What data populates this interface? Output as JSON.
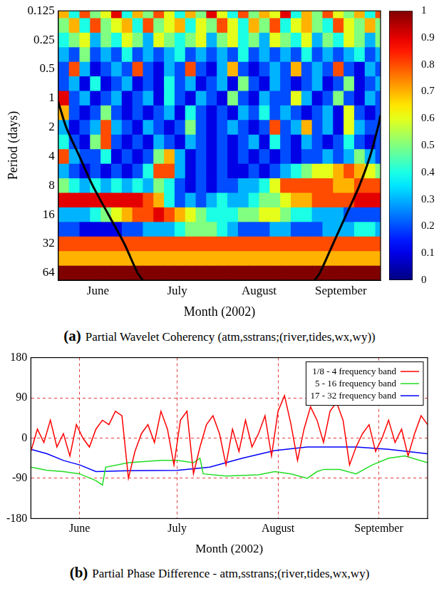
{
  "chart_data": [
    {
      "type": "heatmap",
      "panel_label": "(a)",
      "title": "Partial Wavelet Coherency (atm,sstrans;(river,tides,wx,wy))",
      "x_label": "Month (2002)",
      "y_label": "Period (days)",
      "xlim": [
        0,
        122
      ],
      "xticks": [
        {
          "value": 15,
          "label": "June"
        },
        {
          "value": 45,
          "label": "July"
        },
        {
          "value": 76,
          "label": "August"
        },
        {
          "value": 107,
          "label": "September"
        }
      ],
      "ylim": [
        0.125,
        76
      ],
      "yticks": [
        0.125,
        0.25,
        0.5,
        1,
        2,
        4,
        8,
        16,
        32,
        64
      ],
      "log": "y",
      "grid": false,
      "cells": {
        "x": [
          2,
          6,
          10,
          14,
          18,
          22,
          26,
          30,
          34,
          38,
          42,
          46,
          50,
          54,
          58,
          62,
          66,
          70,
          74,
          78,
          82,
          86,
          90,
          94,
          98,
          102,
          106,
          110,
          114,
          118,
          122
        ],
        "y": [
          0.125,
          0.177,
          0.25,
          0.354,
          0.5,
          0.707,
          1,
          1.41,
          2,
          2.83,
          4,
          5.66,
          8,
          11.3,
          16,
          22.6,
          32,
          45.3,
          64
        ],
        "z": [
          [
            0.7,
            0.4,
            0.8,
            0.5,
            0.6,
            0.9,
            0.4,
            0.7,
            0.5,
            0.8,
            0.6,
            0.4,
            0.7,
            0.5,
            0.9,
            0.6,
            0.4,
            0.8,
            0.5,
            0.7,
            0.6,
            0.9,
            0.4,
            0.7,
            0.5,
            0.8,
            0.6,
            0.5,
            0.7,
            0.4,
            0.8
          ],
          [
            0.5,
            0.7,
            0.4,
            0.8,
            0.5,
            0.6,
            0.7,
            0.4,
            0.8,
            0.5,
            0.6,
            0.7,
            0.4,
            0.6,
            0.5,
            0.8,
            0.6,
            0.4,
            0.7,
            0.5,
            0.8,
            0.4,
            0.6,
            0.7,
            0.5,
            0.4,
            0.8,
            0.6,
            0.5,
            0.7,
            0.5
          ],
          [
            0.4,
            0.5,
            0.6,
            0.3,
            0.5,
            0.4,
            0.6,
            0.5,
            0.3,
            0.6,
            0.5,
            0.4,
            0.5,
            0.6,
            0.3,
            0.5,
            0.6,
            0.4,
            0.5,
            0.3,
            0.6,
            0.5,
            0.4,
            0.6,
            0.3,
            0.5,
            0.4,
            0.6,
            0.5,
            0.3,
            0.5
          ],
          [
            0.3,
            0.2,
            0.5,
            0.2,
            0.3,
            0.2,
            0.4,
            0.2,
            0.3,
            0.2,
            0.3,
            0.4,
            0.2,
            0.3,
            0.2,
            0.3,
            0.2,
            0.4,
            0.2,
            0.3,
            0.2,
            0.3,
            0.2,
            0.4,
            0.2,
            0.3,
            0.2,
            0.3,
            0.4,
            0.2,
            0.3
          ],
          [
            0.2,
            0.8,
            0.3,
            0.1,
            0.2,
            0.3,
            0.2,
            0.8,
            0.2,
            0.1,
            0.3,
            0.2,
            0.8,
            0.2,
            0.1,
            0.3,
            0.7,
            0.2,
            0.1,
            0.2,
            0.3,
            0.2,
            0.7,
            0.2,
            0.3,
            0.2,
            0.8,
            0.2,
            0.1,
            0.3,
            0.2
          ],
          [
            0.2,
            0.3,
            0.1,
            0.4,
            0.1,
            0.2,
            0.3,
            0.1,
            0.2,
            0.1,
            0.4,
            0.2,
            0.3,
            0.1,
            0.2,
            0.3,
            0.1,
            0.5,
            0.2,
            0.1,
            0.3,
            0.2,
            0.1,
            0.2,
            0.3,
            0.1,
            0.2,
            0.5,
            0.1,
            0.2,
            0.3
          ],
          [
            0.9,
            0.2,
            0.3,
            0.1,
            0.2,
            0.3,
            0.1,
            0.2,
            0.3,
            0.1,
            0.4,
            0.2,
            0.1,
            0.3,
            0.2,
            0.1,
            0.5,
            0.2,
            0.1,
            0.3,
            0.2,
            0.2,
            0.6,
            0.3,
            0.1,
            0.2,
            0.5,
            0.2,
            0.1,
            0.3,
            0.2
          ],
          [
            0.7,
            0.2,
            0.1,
            0.2,
            0.5,
            0.2,
            0.1,
            0.2,
            0.1,
            0.2,
            0.3,
            0.1,
            0.4,
            0.2,
            0.1,
            0.2,
            0.1,
            0.3,
            0.2,
            0.4,
            0.2,
            0.3,
            0.2,
            0.1,
            0.2,
            0.3,
            0.1,
            0.6,
            0.2,
            0.1,
            0.2
          ],
          [
            0.3,
            0.1,
            0.2,
            0.3,
            0.8,
            0.3,
            0.2,
            0.1,
            0.3,
            0.2,
            0.1,
            0.2,
            0.5,
            0.2,
            0.1,
            0.2,
            0.3,
            0.2,
            0.1,
            0.2,
            0.8,
            0.2,
            0.3,
            0.7,
            0.2,
            0.3,
            0.1,
            0.6,
            0.3,
            0.2,
            0.2
          ],
          [
            0.4,
            0.2,
            0.1,
            0.5,
            0.8,
            0.2,
            0.1,
            0.2,
            0.1,
            0.3,
            0.2,
            0.1,
            0.3,
            0.2,
            0.1,
            0.2,
            0.1,
            0.2,
            0.3,
            0.1,
            0.4,
            0.2,
            0.1,
            0.3,
            0.2,
            0.1,
            0.2,
            0.4,
            0.2,
            0.1,
            0.2
          ],
          [
            0.8,
            0.3,
            0.2,
            0.2,
            0.4,
            0.1,
            0.2,
            0.1,
            0.2,
            0.5,
            0.7,
            0.3,
            0.1,
            0.2,
            0.1,
            0.2,
            0.1,
            0.2,
            0.1,
            0.2,
            0.1,
            0.2,
            0.1,
            0.2,
            0.2,
            0.3,
            0.2,
            0.3,
            0.5,
            0.3,
            0.2
          ],
          [
            0.3,
            0.2,
            0.1,
            0.2,
            0.1,
            0.2,
            0.1,
            0.2,
            0.4,
            0.8,
            0.8,
            0.3,
            0.1,
            0.2,
            0.1,
            0.2,
            0.1,
            0.1,
            0.2,
            0.1,
            0.2,
            0.3,
            0.4,
            0.5,
            0.6,
            0.6,
            0.7,
            0.8,
            0.7,
            0.6,
            0.5
          ],
          [
            0.5,
            0.4,
            0.3,
            0.4,
            0.3,
            0.4,
            0.3,
            0.4,
            0.3,
            0.5,
            0.4,
            0.2,
            0.1,
            0.2,
            0.1,
            0.2,
            0.2,
            0.3,
            0.3,
            0.4,
            0.6,
            0.8,
            0.8,
            0.8,
            0.8,
            0.8,
            0.7,
            0.7,
            0.8,
            0.8,
            0.8
          ],
          [
            0.9,
            0.9,
            0.9,
            0.9,
            0.9,
            0.9,
            0.9,
            0.9,
            0.8,
            0.7,
            0.4,
            0.2,
            0.3,
            0.2,
            0.3,
            0.4,
            0.3,
            0.3,
            0.4,
            0.5,
            0.5,
            0.6,
            0.7,
            0.7,
            0.8,
            0.8,
            0.8,
            0.8,
            0.9,
            0.9,
            0.9
          ],
          [
            0.3,
            0.3,
            0.3,
            0.4,
            0.5,
            0.6,
            0.7,
            0.8,
            0.8,
            0.9,
            0.8,
            0.7,
            0.6,
            0.5,
            0.4,
            0.4,
            0.4,
            0.5,
            0.5,
            0.6,
            0.6,
            0.5,
            0.4,
            0.4,
            0.3,
            0.3,
            0.3,
            0.2,
            0.2,
            0.2,
            0.2
          ],
          [
            0.2,
            0.2,
            0.1,
            0.1,
            0.1,
            0.1,
            0.2,
            0.2,
            0.3,
            0.3,
            0.3,
            0.4,
            0.5,
            0.5,
            0.5,
            0.4,
            0.3,
            0.2,
            0.2,
            0.2,
            0.3,
            0.3,
            0.2,
            0.2,
            0.2,
            0.3,
            0.3,
            0.3,
            0.4,
            0.4,
            0.3
          ],
          [
            0.8,
            0.8,
            0.8,
            0.8,
            0.8,
            0.8,
            0.8,
            0.8,
            0.8,
            0.8,
            0.8,
            0.8,
            0.8,
            0.8,
            0.8,
            0.8,
            0.8,
            0.8,
            0.8,
            0.8,
            0.8,
            0.8,
            0.8,
            0.8,
            0.8,
            0.8,
            0.8,
            0.8,
            0.8,
            0.8,
            0.8
          ],
          [
            0.7,
            0.7,
            0.7,
            0.7,
            0.7,
            0.7,
            0.7,
            0.7,
            0.7,
            0.7,
            0.7,
            0.7,
            0.7,
            0.7,
            0.7,
            0.7,
            0.7,
            0.7,
            0.7,
            0.7,
            0.7,
            0.7,
            0.7,
            0.7,
            0.7,
            0.7,
            0.7,
            0.7,
            0.7,
            0.7,
            0.7
          ],
          [
            1,
            1,
            1,
            1,
            1,
            1,
            1,
            1,
            1,
            1,
            1,
            1,
            1,
            1,
            1,
            1,
            1,
            1,
            1,
            1,
            1,
            1,
            1,
            1,
            1,
            1,
            1,
            1,
            1,
            1,
            1
          ]
        ]
      },
      "colorbar": {
        "range": [
          0,
          1
        ],
        "ticks": [
          0,
          0.1,
          0.2,
          0.3,
          0.4,
          0.5,
          0.6,
          0.7,
          0.8,
          0.9,
          1
        ]
      },
      "cone_of_influence": [
        {
          "x": [
            0,
            3,
            8,
            13,
            19,
            25,
            30,
            32
          ],
          "y": [
            1.1,
            2,
            4,
            8,
            16,
            32,
            64,
            76
          ]
        },
        {
          "x": [
            97,
            99,
            104,
            109,
            114,
            118,
            121,
            122
          ],
          "y": [
            76,
            64,
            32,
            16,
            8,
            4,
            2,
            1.5
          ]
        }
      ]
    },
    {
      "type": "line",
      "panel_label": "(b)",
      "title": "Partial Phase Difference - atm,sstrans;(river,tides,wx,wy)",
      "x_label": "Month (2002)",
      "xlim": [
        0,
        122
      ],
      "xticks": [
        {
          "value": 15,
          "label": "June"
        },
        {
          "value": 45,
          "label": "July"
        },
        {
          "value": 76,
          "label": "August"
        },
        {
          "value": 107,
          "label": "September"
        }
      ],
      "ylim": [
        -180,
        180
      ],
      "yticks": [
        -180,
        -90,
        0,
        90,
        180
      ],
      "grid": true,
      "legend": "upper right",
      "series": [
        {
          "name": "1/8 - 4 frequency band",
          "color": "#ff0000",
          "x": [
            0,
            2,
            4,
            6,
            8,
            10,
            12,
            14,
            16,
            18,
            20,
            22,
            24,
            26,
            28,
            30,
            32,
            34,
            36,
            38,
            40,
            42,
            44,
            46,
            48,
            50,
            52,
            54,
            56,
            58,
            60,
            62,
            64,
            66,
            68,
            70,
            72,
            74,
            76,
            78,
            80,
            82,
            84,
            86,
            88,
            90,
            92,
            94,
            96,
            98,
            100,
            102,
            104,
            106,
            108,
            110,
            112,
            114,
            116,
            118,
            120,
            122
          ],
          "values": [
            -30,
            20,
            -10,
            40,
            -20,
            10,
            -40,
            30,
            0,
            -20,
            20,
            40,
            30,
            60,
            50,
            -90,
            -30,
            10,
            30,
            -10,
            60,
            20,
            -60,
            40,
            60,
            -80,
            -20,
            30,
            50,
            10,
            -60,
            20,
            -30,
            40,
            -20,
            10,
            50,
            -40,
            60,
            95,
            30,
            -50,
            20,
            70,
            40,
            -10,
            60,
            80,
            40,
            -60,
            -20,
            10,
            30,
            -30,
            0,
            40,
            -10,
            20,
            -40,
            10,
            50,
            30
          ]
        },
        {
          "name": "5 - 16 frequency band",
          "color": "#22dd22",
          "x": [
            0,
            5,
            10,
            15,
            20,
            22,
            23,
            30,
            40,
            45,
            50,
            52,
            53,
            60,
            70,
            75,
            80,
            85,
            88,
            90,
            95,
            100,
            105,
            110,
            115,
            122
          ],
          "values": [
            -65,
            -72,
            -75,
            -80,
            -95,
            -105,
            -65,
            -55,
            -50,
            -50,
            -55,
            -45,
            -80,
            -85,
            -82,
            -75,
            -80,
            -90,
            -75,
            -70,
            -70,
            -80,
            -60,
            -45,
            -40,
            -55
          ]
        },
        {
          "name": "17 - 32 frequency band",
          "color": "#0000ff",
          "x": [
            0,
            5,
            10,
            15,
            20,
            30,
            45,
            55,
            65,
            75,
            85,
            100,
            110,
            122
          ],
          "values": [
            -25,
            -35,
            -50,
            -60,
            -75,
            -73,
            -72,
            -65,
            -45,
            -28,
            -20,
            -20,
            -25,
            -35
          ]
        }
      ]
    }
  ]
}
